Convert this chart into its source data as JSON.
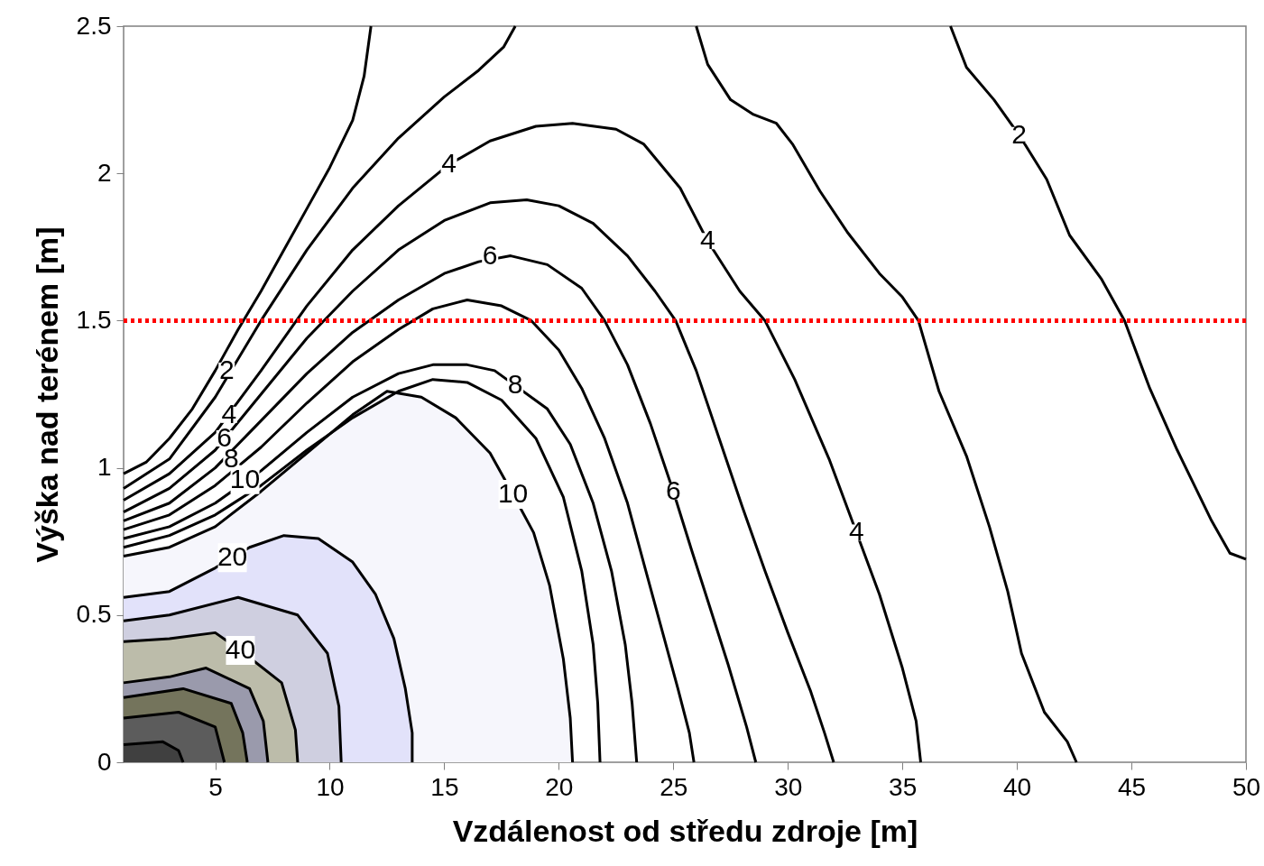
{
  "chart_data": {
    "type": "line",
    "xlabel": "Vzdálenost od středu zdroje [m]",
    "ylabel": "Výška nad terénem [m]",
    "xlim": [
      1,
      50
    ],
    "xticks": [
      5,
      10,
      15,
      20,
      25,
      30,
      35,
      40,
      45,
      50
    ],
    "ylim": [
      0,
      2.5
    ],
    "yticks": [
      0,
      0.5,
      1,
      1.5,
      2,
      2.5
    ],
    "grid": false,
    "marker": "none",
    "series": [
      {
        "type": "area",
        "color": "#f6f6fc",
        "x": [
          1,
          3,
          5,
          7,
          9,
          11,
          12.5,
          14,
          15.5,
          17,
          18,
          18.9,
          19.6,
          20.2,
          20.5,
          20.6
        ],
        "values": [
          0.7,
          0.73,
          0.8,
          0.92,
          1.05,
          1.18,
          1.26,
          1.24,
          1.17,
          1.05,
          0.91,
          0.78,
          0.6,
          0.35,
          0.15,
          0
        ]
      },
      {
        "type": "area",
        "color": "#e2e2fa",
        "x": [
          1,
          3,
          5,
          6.5,
          8,
          9.5,
          11,
          12,
          12.8,
          13.3,
          13.6,
          13.6
        ],
        "values": [
          0.56,
          0.58,
          0.66,
          0.73,
          0.77,
          0.76,
          0.68,
          0.57,
          0.42,
          0.25,
          0.1,
          0
        ]
      },
      {
        "type": "area",
        "color": "#cfcfe0",
        "x": [
          1,
          3,
          6,
          8.6,
          9.9,
          10.4,
          10.5
        ],
        "values": [
          0.48,
          0.5,
          0.56,
          0.5,
          0.37,
          0.19,
          0
        ]
      },
      {
        "type": "area",
        "color": "#bcbcaa",
        "x": [
          1,
          3,
          5,
          6.1,
          7.9,
          8.5,
          8.6
        ],
        "values": [
          0.41,
          0.42,
          0.44,
          0.38,
          0.27,
          0.11,
          0
        ]
      },
      {
        "type": "area",
        "color": "#9a9aac",
        "x": [
          1,
          3,
          4.6,
          6.5,
          7.1,
          7.3
        ],
        "values": [
          0.27,
          0.29,
          0.32,
          0.25,
          0.14,
          0
        ]
      },
      {
        "type": "area",
        "color": "#74745c",
        "x": [
          1,
          3.6,
          5.7,
          6.2,
          6.4
        ],
        "values": [
          0.22,
          0.25,
          0.2,
          0.1,
          0
        ]
      },
      {
        "type": "area",
        "color": "#5c5c5c",
        "x": [
          1,
          3.4,
          5,
          5.4
        ],
        "values": [
          0.15,
          0.17,
          0.12,
          0
        ]
      },
      {
        "type": "area",
        "color": "#404040",
        "x": [
          1,
          2.7,
          3.4,
          3.6
        ],
        "values": [
          0.06,
          0.07,
          0.04,
          0
        ]
      },
      {
        "color": "#000000",
        "x": [
          1,
          2,
          3,
          4,
          5,
          6,
          7,
          8,
          9,
          10,
          11,
          11.5,
          11.8
        ],
        "values": [
          0.98,
          1.02,
          1.1,
          1.2,
          1.33,
          1.47,
          1.6,
          1.74,
          1.88,
          2.02,
          2.18,
          2.33,
          2.5
        ]
      },
      {
        "color": "#000000",
        "x": [
          1,
          3,
          5,
          7,
          9,
          11,
          13,
          15,
          16.5,
          17.6,
          18.1
        ],
        "values": [
          0.93,
          1.03,
          1.24,
          1.5,
          1.74,
          1.95,
          2.12,
          2.26,
          2.35,
          2.43,
          2.5
        ]
      },
      {
        "color": "#000000",
        "x": [
          1,
          3,
          5,
          7,
          9,
          11,
          13,
          15.2,
          17,
          19,
          20.6,
          22.5,
          23.7,
          25.3,
          26.5,
          27.9,
          29,
          30.3,
          31.8,
          33,
          34,
          35,
          35.6,
          35.8
        ],
        "values": [
          0.89,
          0.98,
          1.12,
          1.33,
          1.55,
          1.74,
          1.89,
          2.03,
          2.11,
          2.16,
          2.17,
          2.15,
          2.1,
          1.95,
          1.77,
          1.6,
          1.5,
          1.3,
          1.03,
          0.78,
          0.57,
          0.32,
          0.14,
          0
        ]
      },
      {
        "color": "#000000",
        "x": [
          1,
          3,
          5,
          7,
          9,
          11,
          13,
          15,
          17,
          18.6,
          20,
          21.5,
          23,
          24.2,
          25.1,
          26,
          27,
          28,
          29,
          30,
          31,
          31.6,
          32
        ],
        "values": [
          0.85,
          0.93,
          1.06,
          1.25,
          1.44,
          1.6,
          1.74,
          1.84,
          1.9,
          1.91,
          1.89,
          1.83,
          1.72,
          1.6,
          1.5,
          1.33,
          1.1,
          0.87,
          0.65,
          0.44,
          0.24,
          0.1,
          0
        ]
      },
      {
        "color": "#000000",
        "x": [
          1,
          3,
          5,
          7,
          9,
          11,
          13,
          15,
          16.5,
          17.9,
          19.5,
          21,
          22,
          23,
          24,
          25,
          25.8,
          26.5,
          27.4,
          28.2,
          28.6
        ],
        "values": [
          0.82,
          0.88,
          1.0,
          1.16,
          1.32,
          1.46,
          1.57,
          1.66,
          1.7,
          1.72,
          1.69,
          1.61,
          1.5,
          1.35,
          1.15,
          0.92,
          0.72,
          0.55,
          0.33,
          0.12,
          0
        ]
      },
      {
        "color": "#000000",
        "x": [
          1,
          3,
          5,
          7,
          9,
          11,
          13,
          14.5,
          16,
          17.5,
          18.8,
          20,
          21,
          22,
          23,
          23.8,
          24.5,
          25.2,
          25.7,
          25.9
        ],
        "values": [
          0.79,
          0.84,
          0.94,
          1.07,
          1.22,
          1.36,
          1.47,
          1.54,
          1.57,
          1.55,
          1.5,
          1.4,
          1.27,
          1.1,
          0.88,
          0.65,
          0.45,
          0.25,
          0.1,
          0
        ]
      },
      {
        "color": "#000000",
        "x": [
          1,
          3,
          5,
          7,
          9,
          11,
          13,
          14.5,
          16,
          17.2,
          19.5,
          20.5,
          21.5,
          22.3,
          22.9,
          23.2,
          23.4
        ],
        "values": [
          0.76,
          0.8,
          0.88,
          0.99,
          1.12,
          1.24,
          1.32,
          1.35,
          1.35,
          1.33,
          1.2,
          1.08,
          0.88,
          0.65,
          0.4,
          0.2,
          0
        ]
      },
      {
        "color": "#000000",
        "x": [
          1,
          3,
          5,
          7,
          9,
          11,
          13,
          14.5,
          16,
          17.5,
          19,
          20.2,
          21,
          21.5,
          21.7,
          21.8
        ],
        "values": [
          0.73,
          0.77,
          0.84,
          0.94,
          1.06,
          1.17,
          1.26,
          1.3,
          1.29,
          1.23,
          1.1,
          0.9,
          0.65,
          0.4,
          0.2,
          0
        ]
      },
      {
        "color": "#000000",
        "x": [
          26,
          26.5,
          27.5,
          28.5,
          29.5,
          30.2,
          31.4,
          32.6,
          34,
          35,
          35.7,
          36.6,
          37.8,
          38.8,
          39.6,
          40.2,
          41.2,
          42.2,
          42.6
        ],
        "values": [
          2.5,
          2.37,
          2.25,
          2.2,
          2.17,
          2.1,
          1.94,
          1.8,
          1.66,
          1.58,
          1.5,
          1.26,
          1.04,
          0.8,
          0.58,
          0.37,
          0.17,
          0.07,
          0
        ]
      },
      {
        "color": "#000000",
        "x": [
          37.1,
          37.8,
          39,
          40.1,
          41.3,
          42.3,
          43.7,
          44.7,
          45.8,
          47,
          48.5,
          49.3,
          50
        ],
        "values": [
          2.5,
          2.36,
          2.25,
          2.13,
          1.98,
          1.79,
          1.64,
          1.5,
          1.27,
          1.06,
          0.82,
          0.71,
          0.69
        ]
      }
    ],
    "ref_lines": [
      {
        "axis": "y",
        "value": 1.5,
        "color": "#ff0000",
        "line_style": "dotted"
      }
    ],
    "annotations": [
      {
        "text": "2",
        "x": 5.5,
        "y": 1.33
      },
      {
        "text": "4",
        "x": 5.6,
        "y": 1.18
      },
      {
        "text": "6",
        "x": 5.4,
        "y": 1.1
      },
      {
        "text": "8",
        "x": 5.7,
        "y": 1.03
      },
      {
        "text": "10",
        "x": 6.3,
        "y": 0.96
      },
      {
        "text": "4",
        "x": 15.2,
        "y": 2.03
      },
      {
        "text": "6",
        "x": 17,
        "y": 1.72
      },
      {
        "text": "8",
        "x": 18.1,
        "y": 1.28
      },
      {
        "text": "10",
        "x": 18,
        "y": 0.91
      },
      {
        "text": "20",
        "x": 5.75,
        "y": 0.695
      },
      {
        "text": "40",
        "x": 6.1,
        "y": 0.38
      },
      {
        "text": "4",
        "x": 26.5,
        "y": 1.77
      },
      {
        "text": "6",
        "x": 25,
        "y": 0.92
      },
      {
        "text": "4",
        "x": 33,
        "y": 0.78
      },
      {
        "text": "2",
        "x": 40.1,
        "y": 2.13
      }
    ]
  }
}
